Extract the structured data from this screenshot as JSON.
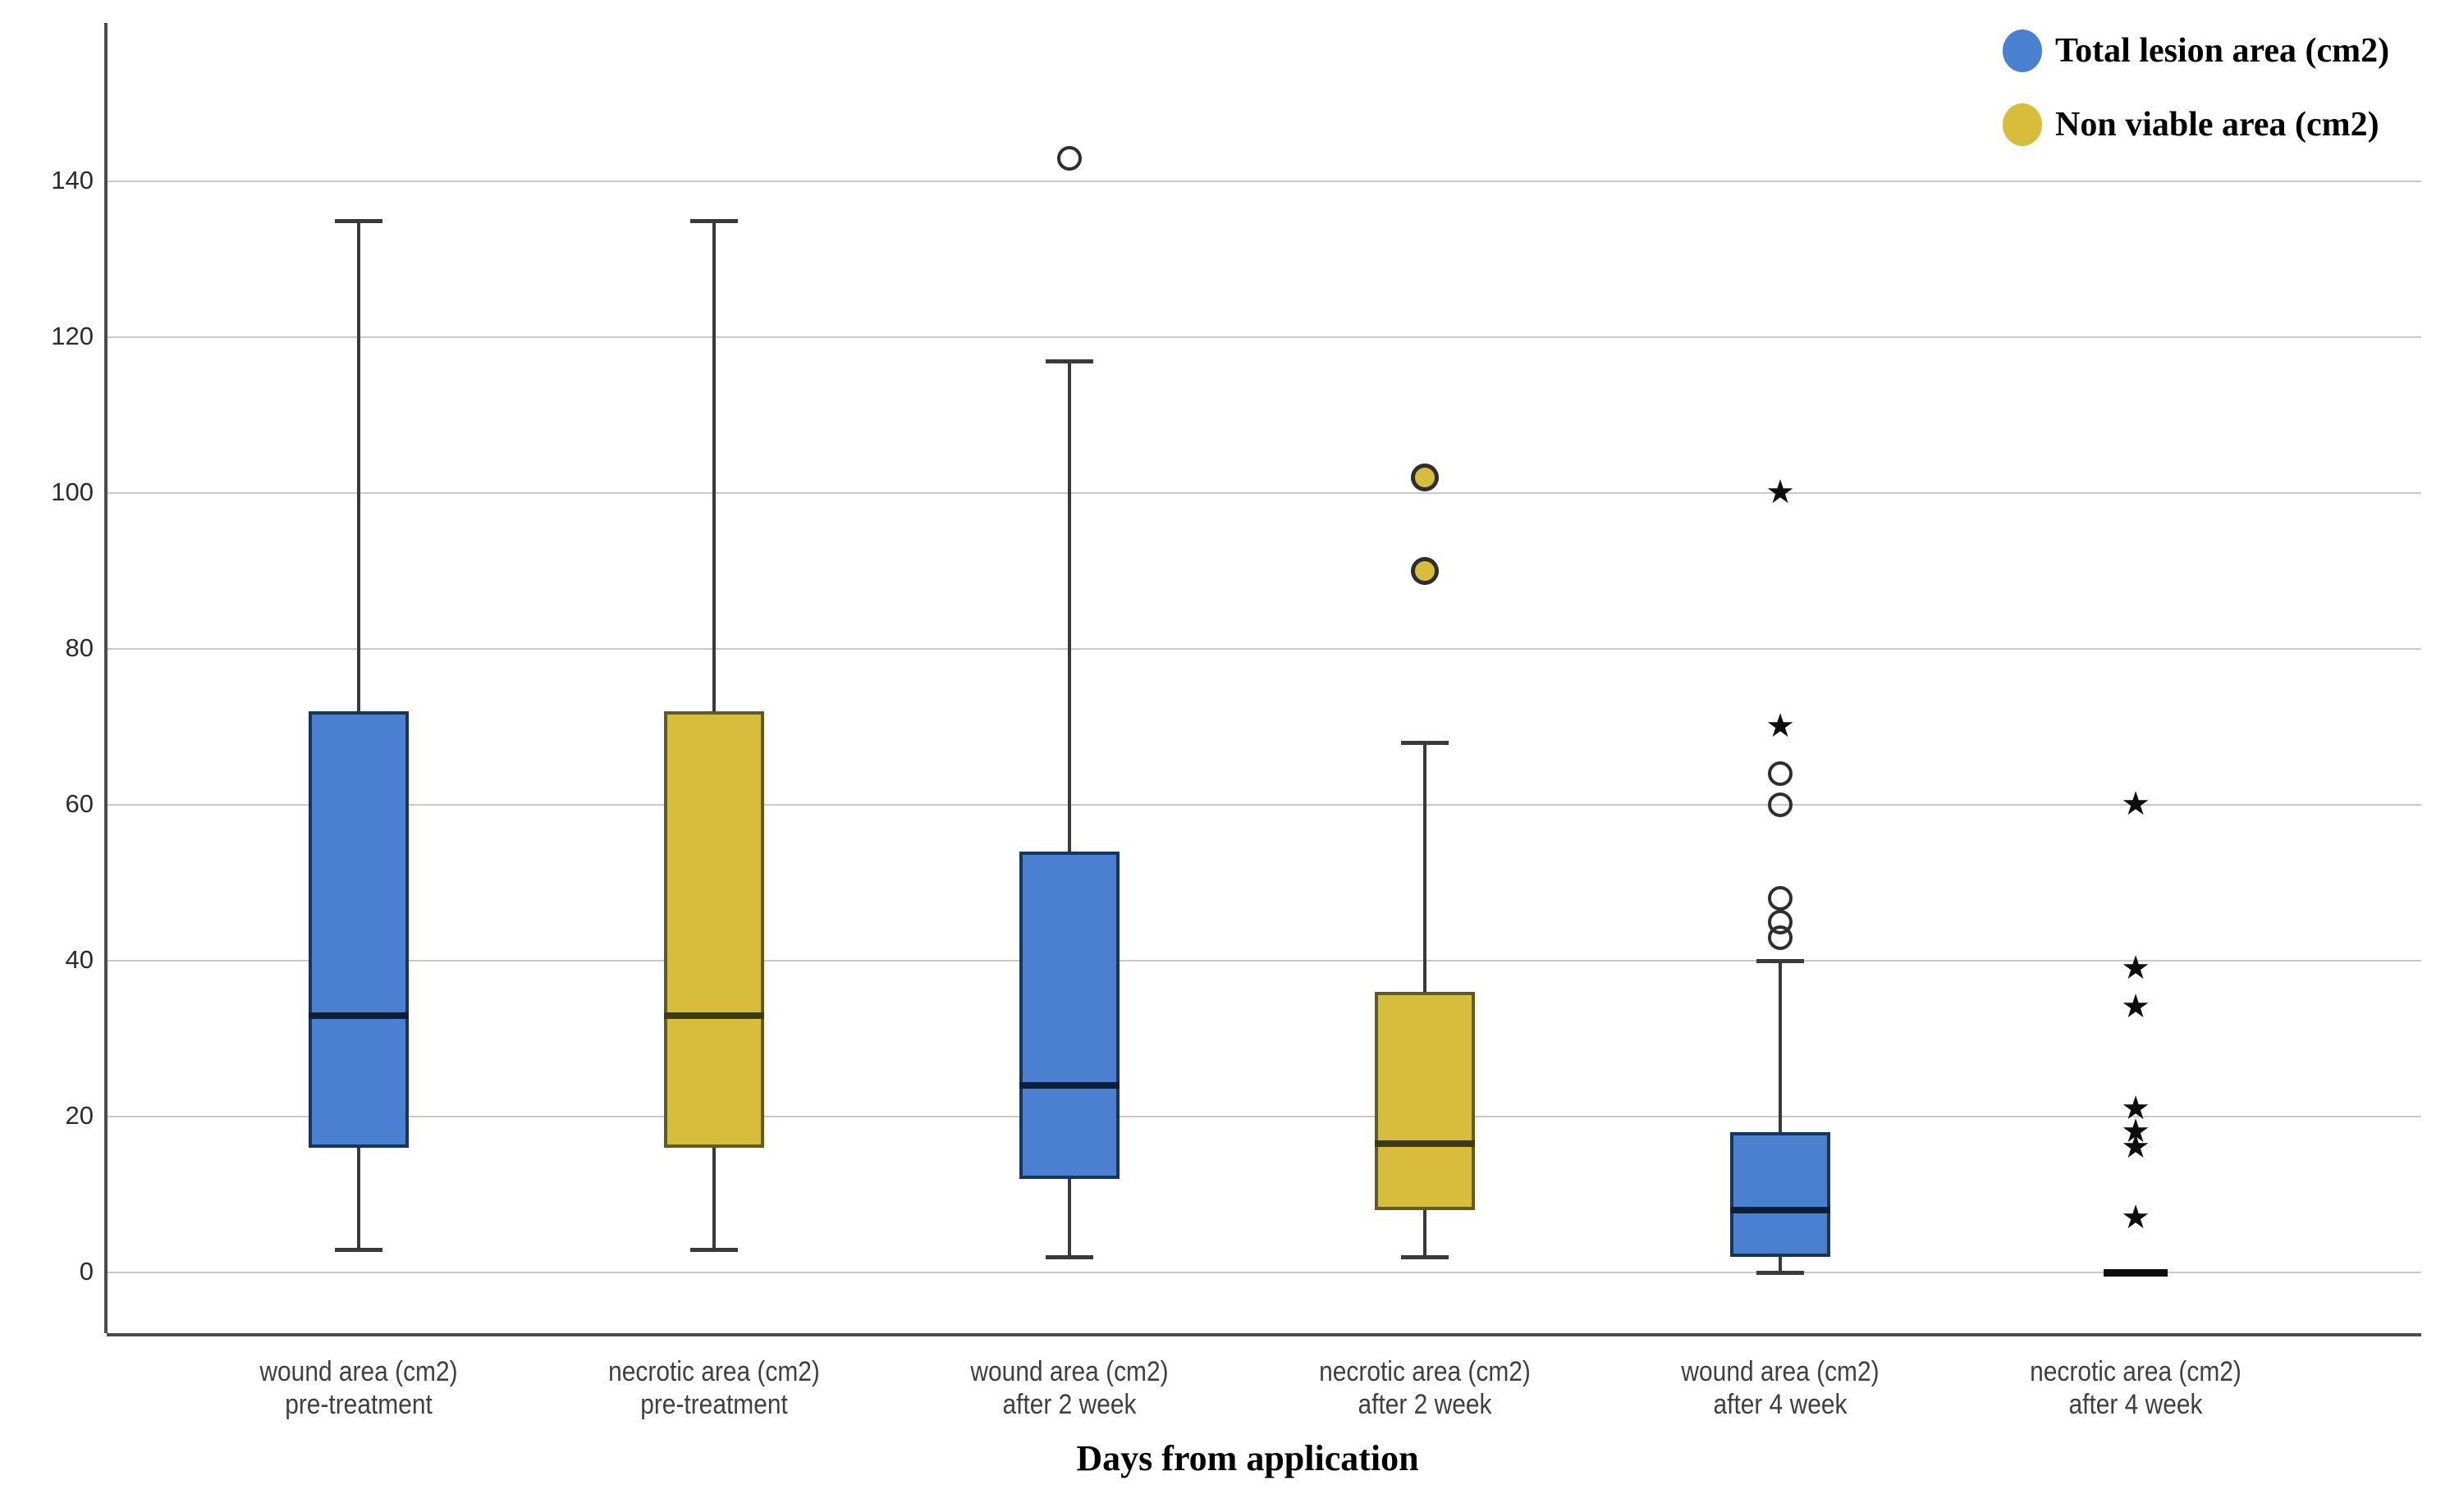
{
  "legend": {
    "items": [
      {
        "label": "Total lesion area (cm2)",
        "marker": "circle",
        "color": "#4a80cf"
      },
      {
        "label": "Non viable area (cm2)",
        "marker": "circle",
        "color": "#d8bc3c"
      }
    ]
  },
  "chart_data": {
    "type": "boxplot",
    "title": "",
    "xlabel": "Days from application",
    "ylabel": "",
    "yticks": [
      0,
      20,
      40,
      60,
      80,
      100,
      120,
      140
    ],
    "ylim": [
      -8,
      160
    ],
    "grid": "horizontal",
    "legend_position": "top-right",
    "series": [
      {
        "name": "Total lesion area (cm2)",
        "fill": "#4a80cf",
        "border": "#16365c",
        "median_color": "#0b1f38"
      },
      {
        "name": "Non viable area (cm2)",
        "fill": "#d8bc3c",
        "border": "#635a22",
        "median_color": "#3f3a16"
      }
    ],
    "categories": [
      {
        "line1": "wound area (cm2)",
        "line2": "pre-treatment"
      },
      {
        "line1": "necrotic area (cm2)",
        "line2": "pre-treatment"
      },
      {
        "line1": "wound area (cm2)",
        "line2": "after 2 week"
      },
      {
        "line1": "necrotic area (cm2)",
        "line2": "after 2 week"
      },
      {
        "line1": "wound area (cm2)",
        "line2": "after 4 week"
      },
      {
        "line1": "necrotic area (cm2)",
        "line2": "after 4 week"
      }
    ],
    "boxes": [
      {
        "series": 0,
        "whisker_low": 3,
        "q1": 16,
        "median": 33,
        "q3": 72,
        "whisker_high": 135,
        "outliers": []
      },
      {
        "series": 1,
        "whisker_low": 3,
        "q1": 16,
        "median": 33,
        "q3": 72,
        "whisker_high": 135,
        "outliers": []
      },
      {
        "series": 0,
        "whisker_low": 2,
        "q1": 12,
        "median": 24,
        "q3": 54,
        "whisker_high": 117,
        "outliers": [
          {
            "value": 143,
            "marker": "circle-open"
          }
        ]
      },
      {
        "series": 1,
        "whisker_low": 2,
        "q1": 8,
        "median": 16.5,
        "q3": 36,
        "whisker_high": 68,
        "outliers": [
          {
            "value": 90,
            "marker": "circle-filled"
          },
          {
            "value": 102,
            "marker": "circle-filled"
          }
        ]
      },
      {
        "series": 0,
        "whisker_low": 0,
        "q1": 2,
        "median": 8,
        "q3": 18,
        "whisker_high": 40,
        "outliers": [
          {
            "value": 43,
            "marker": "circle-open"
          },
          {
            "value": 45,
            "marker": "circle-open"
          },
          {
            "value": 48,
            "marker": "circle-open"
          },
          {
            "value": 60,
            "marker": "circle-open"
          },
          {
            "value": 64,
            "marker": "circle-open"
          },
          {
            "value": 70,
            "marker": "star"
          },
          {
            "value": 100,
            "marker": "star"
          }
        ]
      },
      {
        "series": 1,
        "whisker_low": 0,
        "q1": 0,
        "median": 0,
        "q3": 0,
        "whisker_high": 0,
        "outliers": [
          {
            "value": 7,
            "marker": "star"
          },
          {
            "value": 16,
            "marker": "star"
          },
          {
            "value": 18,
            "marker": "star"
          },
          {
            "value": 21,
            "marker": "star"
          },
          {
            "value": 34,
            "marker": "star"
          },
          {
            "value": 39,
            "marker": "star"
          },
          {
            "value": 60,
            "marker": "star"
          }
        ]
      }
    ]
  },
  "colors": {
    "gridline": "#c8c8c8",
    "axis": "#4c4c4c",
    "whisker": "#3a3a3a",
    "outlier_stroke": "#2e2e2e",
    "star": "#0d0d0d",
    "background": "#ffffff"
  }
}
